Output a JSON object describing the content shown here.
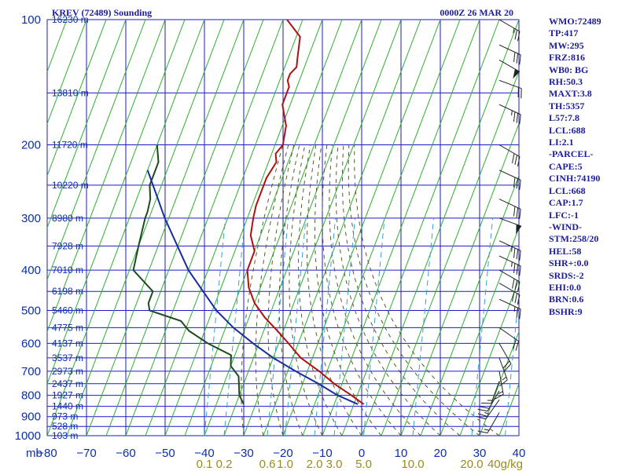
{
  "header": {
    "title": "KREV (72489) Sounding",
    "time": "0000Z 26 MAR 20"
  },
  "stats": [
    "WMO:72489",
    "TP:417",
    "MW:295",
    "FRZ:816",
    "WB0: BG",
    "RH:50.3",
    "MAXT:3.8",
    "TH:5357",
    "L57:7.8",
    "LCL:688",
    "LI:2.1",
    "-PARCEL-",
    "CAPE:5",
    "CINH:74190",
    "LCL:668",
    "CAP:1.7",
    "LFC:-1",
    "-WIND-",
    "STM:258/20",
    "HEL:58",
    "SHR+:0.0",
    "SRDS:-2",
    "EHI:0.0",
    "BRN:0.6",
    "BSHR:9"
  ],
  "colors": {
    "grid": "#1a1acc",
    "temperature": "#b01010",
    "dewpoint": "#1e4a1e",
    "parcel": "#1a2c9e",
    "isotherm": "#2fae2f",
    "moist_adiabat": "#5a5a2a",
    "mixing_ratio": "#3aa0d0",
    "label": "#0a2fa8",
    "mixing_label": "#9a8b1e",
    "barb": "#222222"
  },
  "chart_data": {
    "type": "line",
    "title": "KREV (72489) Sounding",
    "subtitle": "0000Z 26 MAR 20",
    "x_axis_label_corner": "mb",
    "xlim": [
      -80,
      40
    ],
    "ylim": [
      1000,
      100
    ],
    "y_scale": "log",
    "grid": true,
    "temperature_ticks": [
      -80,
      -70,
      -60,
      -50,
      -40,
      -30,
      -20,
      -10,
      0,
      10,
      20,
      30,
      40
    ],
    "pressure_ticks": [
      100,
      200,
      300,
      400,
      500,
      600,
      700,
      800,
      900,
      1000
    ],
    "height_labels": [
      {
        "p": 100,
        "text": "16230 m"
      },
      {
        "p": 150,
        "text": "13810 m"
      },
      {
        "p": 200,
        "text": "11720 m"
      },
      {
        "p": 250,
        "text": "10220 m"
      },
      {
        "p": 300,
        "text": "8980 m"
      },
      {
        "p": 350,
        "text": "7928 m"
      },
      {
        "p": 400,
        "text": "7010 m"
      },
      {
        "p": 450,
        "text": "6198 m"
      },
      {
        "p": 500,
        "text": "5460 m"
      },
      {
        "p": 550,
        "text": "4775 m"
      },
      {
        "p": 600,
        "text": "4137 m"
      },
      {
        "p": 650,
        "text": "3537 m"
      },
      {
        "p": 700,
        "text": "2973 m"
      },
      {
        "p": 750,
        "text": "2437 m"
      },
      {
        "p": 800,
        "text": "1927 m"
      },
      {
        "p": 850,
        "text": "1440 m"
      },
      {
        "p": 900,
        "text": "973 m"
      },
      {
        "p": 950,
        "text": "528 m"
      },
      {
        "p": 1000,
        "text": "103 m"
      }
    ],
    "mixing_ratio_labels": [
      {
        "text": "0.1",
        "x": -40
      },
      {
        "text": "0.2",
        "x": -35
      },
      {
        "text": "0.6",
        "x": -24
      },
      {
        "text": "1.0",
        "x": -19.5
      },
      {
        "text": "2.0",
        "x": -12
      },
      {
        "text": "3.0",
        "x": -7
      },
      {
        "text": "5.0",
        "x": 0.5
      },
      {
        "text": "10.0",
        "x": 13
      },
      {
        "text": "20.0",
        "x": 28
      },
      {
        "text": "40g/kg",
        "x": 36.5
      }
    ],
    "series": [
      {
        "name": "temperature",
        "points": [
          [
            100,
            -59
          ],
          [
            110,
            -54
          ],
          [
            120,
            -53
          ],
          [
            125,
            -52.5
          ],
          [
            130,
            -52
          ],
          [
            135,
            -53
          ],
          [
            140,
            -53
          ],
          [
            145,
            -52
          ],
          [
            150,
            -52
          ],
          [
            160,
            -52
          ],
          [
            180,
            -49
          ],
          [
            200,
            -48
          ],
          [
            210,
            -49
          ],
          [
            220,
            -48
          ],
          [
            240,
            -49
          ],
          [
            260,
            -49
          ],
          [
            280,
            -49
          ],
          [
            300,
            -48.5
          ],
          [
            330,
            -47.5
          ],
          [
            360,
            -45
          ],
          [
            400,
            -45
          ],
          [
            440,
            -43
          ],
          [
            480,
            -40
          ],
          [
            520,
            -36
          ],
          [
            560,
            -31.5
          ],
          [
            600,
            -27.5
          ],
          [
            650,
            -23
          ],
          [
            700,
            -17
          ],
          [
            750,
            -12
          ],
          [
            800,
            -6.5
          ],
          [
            840,
            -2.5
          ]
        ]
      },
      {
        "name": "dewpoint",
        "points": [
          [
            200,
            -80
          ],
          [
            220,
            -78
          ],
          [
            250,
            -78
          ],
          [
            270,
            -76.5
          ],
          [
            290,
            -76
          ],
          [
            300,
            -76
          ],
          [
            350,
            -75
          ],
          [
            400,
            -74
          ],
          [
            450,
            -67
          ],
          [
            480,
            -67
          ],
          [
            500,
            -66
          ],
          [
            530,
            -57
          ],
          [
            560,
            -54
          ],
          [
            600,
            -48
          ],
          [
            640,
            -41
          ],
          [
            680,
            -40
          ],
          [
            720,
            -37
          ],
          [
            800,
            -35
          ],
          [
            840,
            -33
          ]
        ]
      },
      {
        "name": "parcel",
        "points": [
          [
            230,
            -80
          ],
          [
            300,
            -71
          ],
          [
            400,
            -60
          ],
          [
            500,
            -49
          ],
          [
            550,
            -43
          ],
          [
            600,
            -36.5
          ],
          [
            650,
            -30
          ],
          [
            700,
            -23
          ],
          [
            750,
            -16
          ],
          [
            800,
            -10
          ],
          [
            840,
            -4
          ]
        ]
      }
    ],
    "wind_barbs": [
      {
        "p": 100,
        "dir": 300,
        "kt": 25
      },
      {
        "p": 115,
        "dir": 295,
        "kt": 30
      },
      {
        "p": 125,
        "dir": 300,
        "kt": 50
      },
      {
        "p": 140,
        "dir": 290,
        "kt": 20
      },
      {
        "p": 160,
        "dir": 295,
        "kt": 35
      },
      {
        "p": 200,
        "dir": 300,
        "kt": 30
      },
      {
        "p": 230,
        "dir": 295,
        "kt": 30
      },
      {
        "p": 270,
        "dir": 295,
        "kt": 30
      },
      {
        "p": 300,
        "dir": 290,
        "kt": 50
      },
      {
        "p": 340,
        "dir": 295,
        "kt": 35
      },
      {
        "p": 370,
        "dir": 295,
        "kt": 35
      },
      {
        "p": 400,
        "dir": 300,
        "kt": 30
      },
      {
        "p": 430,
        "dir": 300,
        "kt": 30
      },
      {
        "p": 470,
        "dir": 295,
        "kt": 25
      },
      {
        "p": 550,
        "dir": 305,
        "kt": 20
      },
      {
        "p": 600,
        "dir": 330,
        "kt": 20
      },
      {
        "p": 650,
        "dir": 340,
        "kt": 15
      },
      {
        "p": 700,
        "dir": 350,
        "kt": 15
      },
      {
        "p": 740,
        "dir": 20,
        "kt": 15
      },
      {
        "p": 780,
        "dir": 30,
        "kt": 20
      },
      {
        "p": 820,
        "dir": 35,
        "kt": 25
      },
      {
        "p": 880,
        "dir": 30,
        "kt": 15
      }
    ]
  }
}
